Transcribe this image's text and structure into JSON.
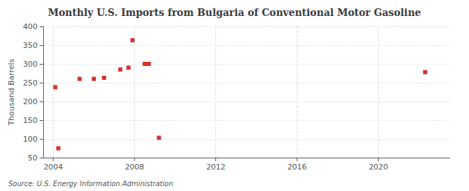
{
  "chart_data": {
    "type": "scatter",
    "title": "Monthly U.S. Imports from Bulgaria of Conventional Motor Gasoline",
    "ylabel": "Thousand Barrels",
    "annotation": "Source: U.S. Energy Information Administration",
    "x": [
      2004.1,
      2004.25,
      2005.3,
      2006.0,
      2006.5,
      2007.3,
      2007.7,
      2007.9,
      2008.5,
      2008.7,
      2009.2,
      2022.3
    ],
    "values": [
      238,
      75,
      260,
      260,
      263,
      285,
      290,
      363,
      300,
      300,
      103,
      278
    ],
    "color": "#cc0000",
    "marker": "square",
    "xlim": [
      2003.5,
      2023.5
    ],
    "xticks": [
      2004,
      2008,
      2012,
      2016,
      2020
    ],
    "ylim": [
      50,
      400
    ],
    "yticks": [
      50,
      100,
      150,
      200,
      250,
      300,
      350,
      400
    ],
    "grid": true
  }
}
